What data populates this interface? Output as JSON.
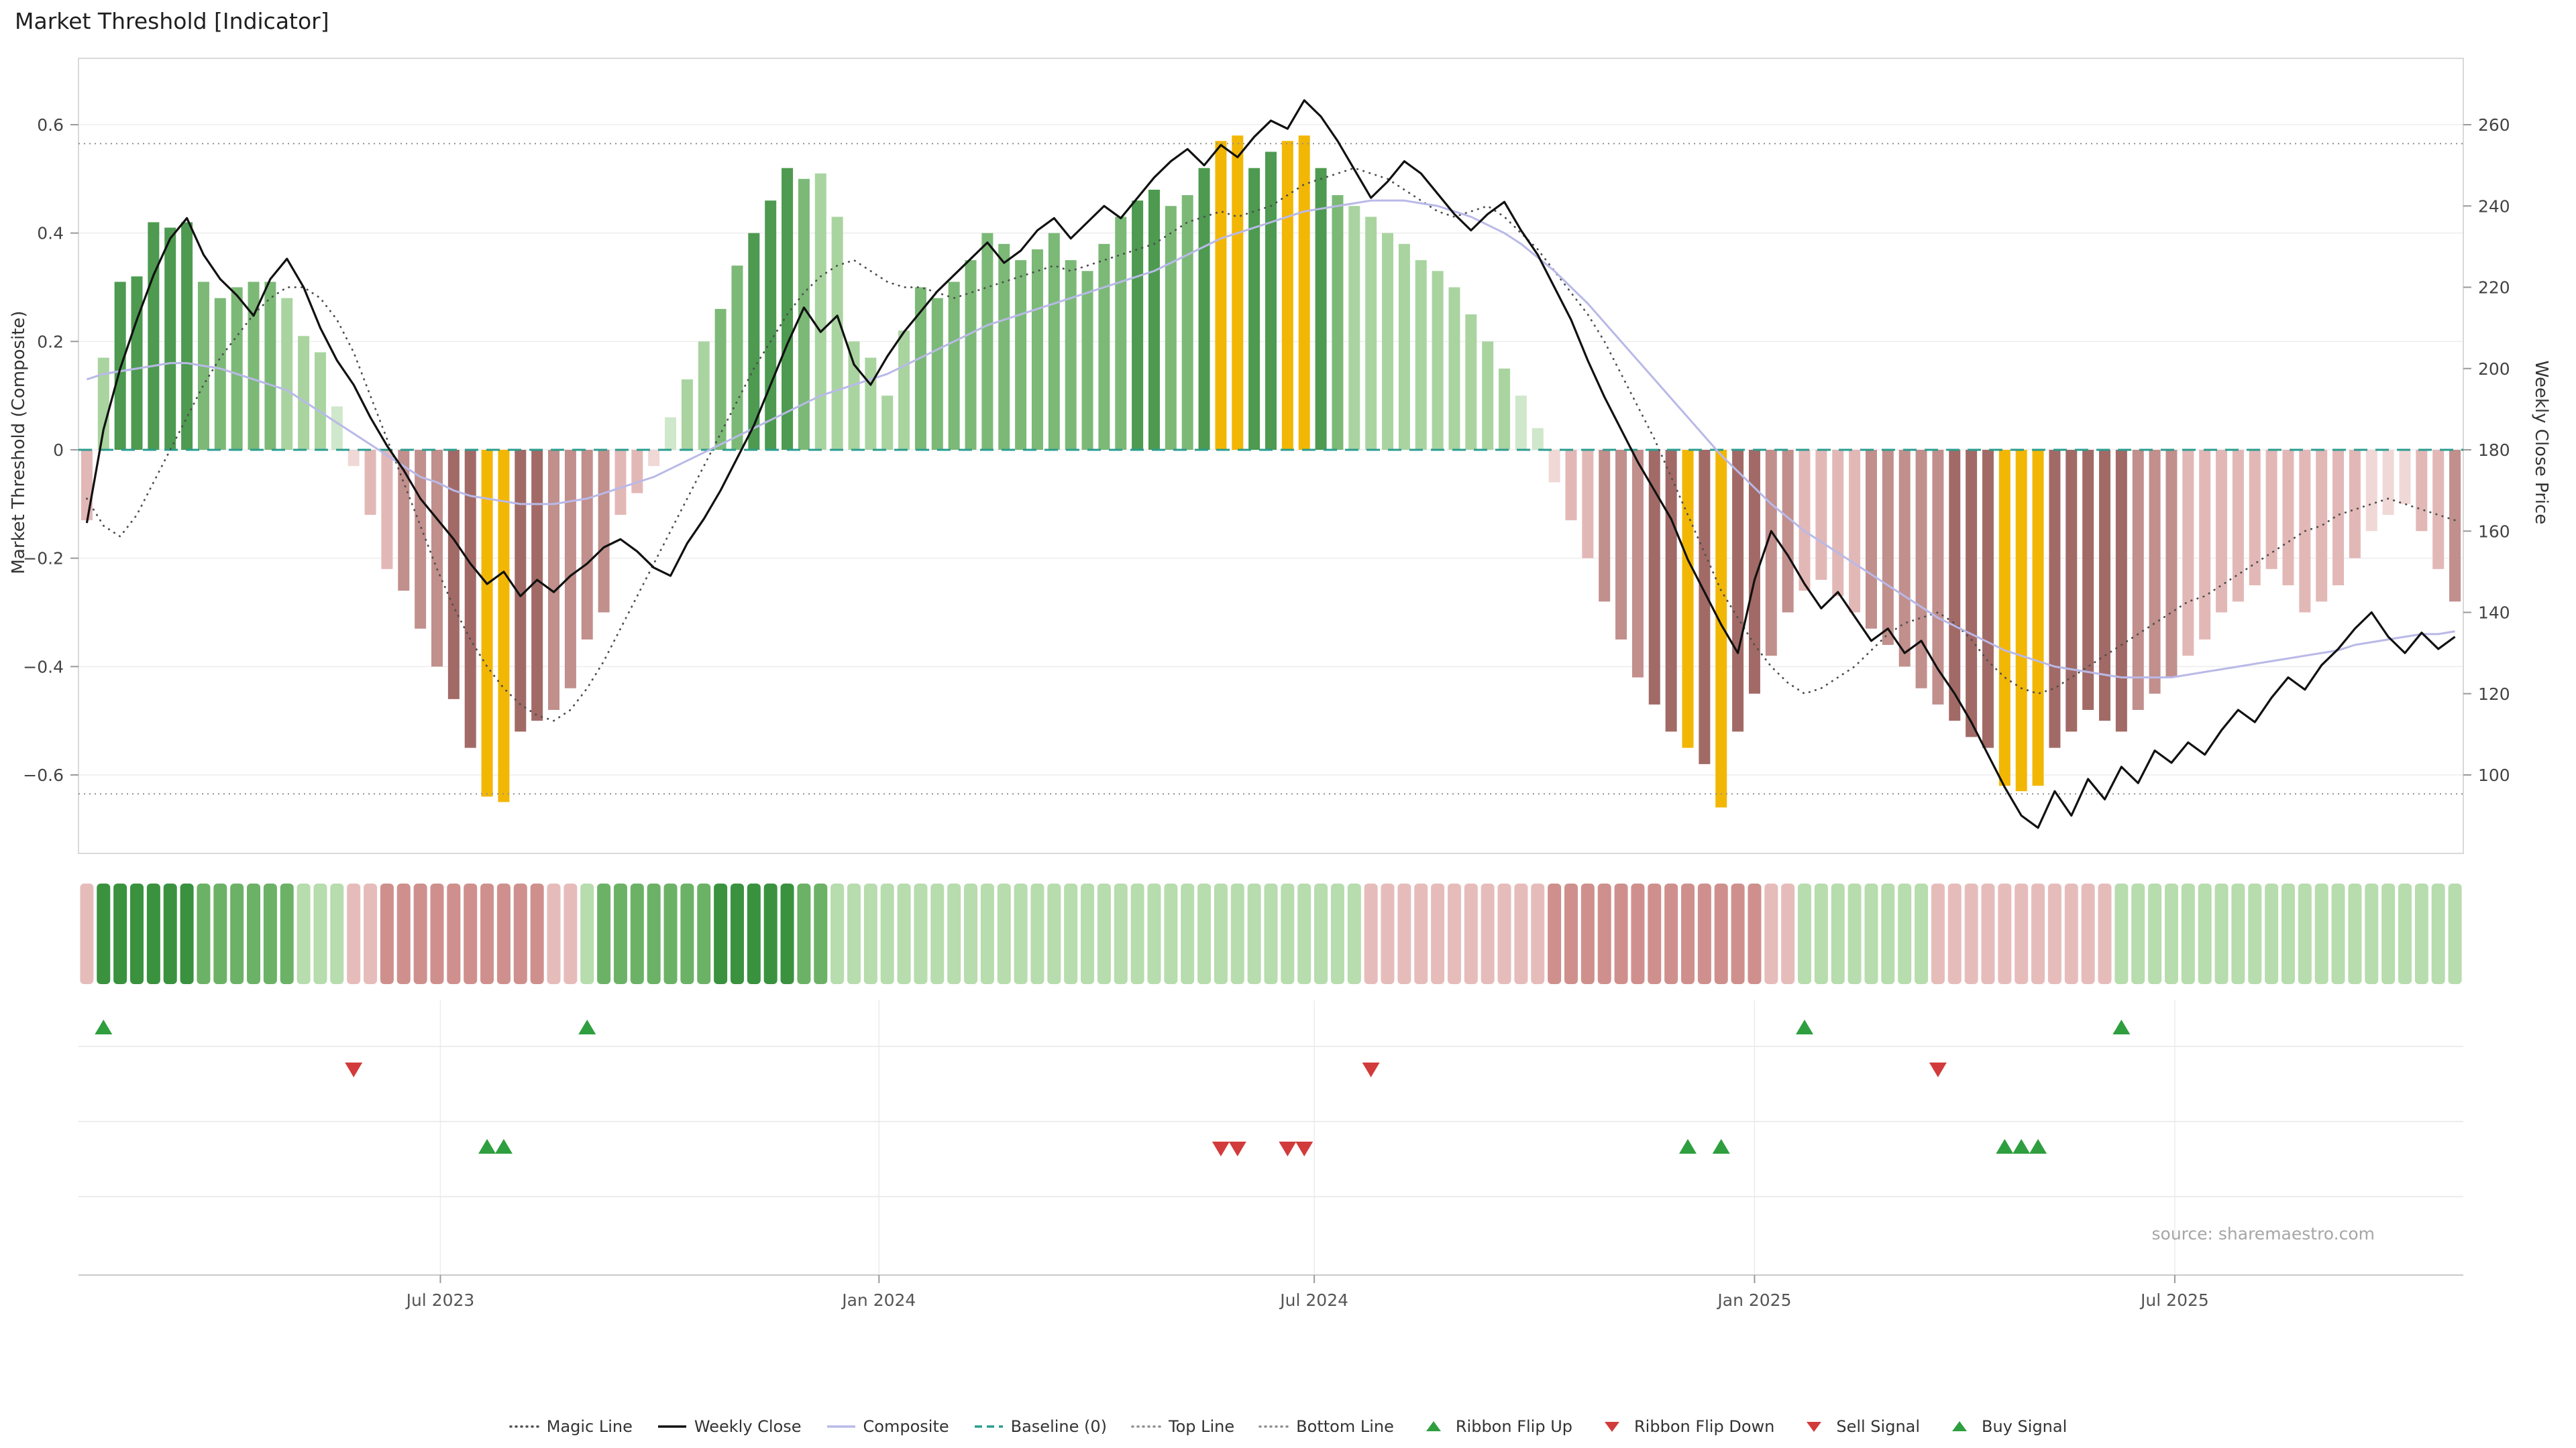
{
  "title": "Market Threshold [Indicator]",
  "source": "source: sharemaestro.com",
  "colors": {
    "bars": {
      "g3": "#4d9a50",
      "g2": "#7cb977",
      "g1": "#a9d4a0",
      "g0": "#cfe7ca",
      "r3": "#a26a66",
      "r2": "#c18f8c",
      "r1": "#e2b8b6",
      "r0": "#f0d8d6",
      "gold": "#f2b705"
    },
    "ribbon": {
      "3": "#3a923f",
      "2": "#6cb266",
      "1": "#b7dcad",
      "-1": "#e6bcba",
      "-2": "#cf908d",
      "-3": "#b96f6a"
    },
    "lines": {
      "weekly_close": "#111111",
      "composite": "#b9b9e8",
      "magic": "#4f4f4f",
      "baseline": "#2a9d8f",
      "threshold": "#8f8f8f"
    },
    "grid": "#ededed",
    "spine": "#d9d9d9",
    "tick_text": "#444444",
    "signal_up": "#2f9e3f",
    "signal_down": "#d23b3b"
  },
  "legend": [
    {
      "label": "Magic Line",
      "swatch": "dotted-line",
      "color": "#4f4f4f"
    },
    {
      "label": "Weekly Close",
      "swatch": "solid-line",
      "color": "#111111"
    },
    {
      "label": "Composite",
      "swatch": "solid-line",
      "color": "#b9b9e8"
    },
    {
      "label": "Baseline (0)",
      "swatch": "dashed-line",
      "color": "#2a9d8f"
    },
    {
      "label": "Top Line",
      "swatch": "dotted-line",
      "color": "#8f8f8f"
    },
    {
      "label": "Bottom Line",
      "swatch": "dotted-line",
      "color": "#8f8f8f"
    },
    {
      "label": "Ribbon Flip Up",
      "swatch": "triangle-up",
      "color": "#2f9e3f"
    },
    {
      "label": "Ribbon Flip Down",
      "swatch": "triangle-down",
      "color": "#d23b3b"
    },
    {
      "label": "Sell Signal",
      "swatch": "triangle-down",
      "color": "#d23b3b"
    },
    {
      "label": "Buy Signal",
      "swatch": "triangle-up",
      "color": "#2f9e3f"
    }
  ],
  "chart_data": {
    "type": "bar",
    "title": "Market Threshold [Indicator]",
    "x_unit": "week",
    "n_weeks": 143,
    "ylabel_left": "Market Threshold (Composite)",
    "ylabel_right": "Weekly Close Price",
    "ylim_left": [
      -0.74,
      0.72
    ],
    "yticks_left_values": [
      0.6,
      0.4,
      0.2,
      0,
      -0.2,
      -0.4,
      -0.6
    ],
    "yticks_left_labels": [
      "0.6",
      "0.4",
      "0.2",
      "0",
      "−0.2",
      "−0.4",
      "−0.6"
    ],
    "yticks_right_values": [
      260,
      240,
      220,
      200,
      180,
      160,
      140,
      120,
      100
    ],
    "yticks_right_labels": [
      "260",
      "240",
      "220",
      "200",
      "180",
      "160",
      "140",
      "120",
      "100"
    ],
    "right_axis_mapping": "price = 180 + composite * 133.33",
    "x_tick_labels": [
      "Jul 2023",
      "Jan 2024",
      "Jul 2024",
      "Jan 2025",
      "Jul 2025"
    ],
    "x_tick_weeks": [
      21.2,
      47.5,
      73.6,
      100.0,
      125.2
    ],
    "top_line": 0.565,
    "bottom_line": -0.635,
    "baseline": 0,
    "legend_position": "bottom",
    "series": {
      "composite_bars": [
        -0.13,
        0.17,
        0.31,
        0.32,
        0.42,
        0.41,
        0.42,
        0.31,
        0.28,
        0.3,
        0.31,
        0.31,
        0.28,
        0.21,
        0.18,
        0.08,
        -0.03,
        -0.12,
        -0.22,
        -0.26,
        -0.33,
        -0.4,
        -0.46,
        -0.55,
        -0.64,
        -0.65,
        -0.52,
        -0.5,
        -0.48,
        -0.44,
        -0.35,
        -0.3,
        -0.12,
        -0.08,
        -0.03,
        0.06,
        0.13,
        0.2,
        0.26,
        0.34,
        0.4,
        0.46,
        0.52,
        0.5,
        0.51,
        0.43,
        0.2,
        0.17,
        0.1,
        0.22,
        0.3,
        0.28,
        0.31,
        0.35,
        0.4,
        0.38,
        0.35,
        0.37,
        0.4,
        0.35,
        0.33,
        0.38,
        0.43,
        0.46,
        0.48,
        0.45,
        0.47,
        0.52,
        0.57,
        0.58,
        0.52,
        0.55,
        0.57,
        0.58,
        0.52,
        0.47,
        0.45,
        0.43,
        0.4,
        0.38,
        0.35,
        0.33,
        0.3,
        0.25,
        0.2,
        0.15,
        0.1,
        0.04,
        -0.06,
        -0.13,
        -0.2,
        -0.28,
        -0.35,
        -0.42,
        -0.47,
        -0.52,
        -0.55,
        -0.58,
        -0.66,
        -0.52,
        -0.45,
        -0.38,
        -0.3,
        -0.26,
        -0.24,
        -0.27,
        -0.3,
        -0.33,
        -0.36,
        -0.4,
        -0.44,
        -0.47,
        -0.5,
        -0.53,
        -0.55,
        -0.62,
        -0.63,
        -0.62,
        -0.55,
        -0.52,
        -0.48,
        -0.5,
        -0.52,
        -0.48,
        -0.45,
        -0.42,
        -0.38,
        -0.35,
        -0.3,
        -0.28,
        -0.25,
        -0.22,
        -0.25,
        -0.3,
        -0.28,
        -0.25,
        -0.2,
        -0.15,
        -0.12,
        -0.1,
        -0.15,
        -0.22,
        -0.28
      ],
      "weekly_close_price": [
        162,
        185,
        200,
        212,
        223,
        232,
        237,
        228,
        222,
        218,
        213,
        222,
        227,
        220,
        210,
        202,
        196,
        188,
        181,
        175,
        168,
        163,
        158,
        152,
        147,
        150,
        144,
        148,
        145,
        149,
        152,
        156,
        158,
        155,
        151,
        149,
        157,
        163,
        170,
        178,
        186,
        196,
        206,
        215,
        209,
        213,
        201,
        196,
        203,
        209,
        214,
        219,
        223,
        227,
        231,
        226,
        229,
        234,
        237,
        232,
        236,
        240,
        237,
        242,
        247,
        251,
        254,
        250,
        255,
        252,
        257,
        261,
        259,
        266,
        262,
        256,
        249,
        242,
        246,
        251,
        248,
        243,
        238,
        234,
        238,
        241,
        234,
        228,
        220,
        212,
        202,
        193,
        185,
        177,
        170,
        163,
        153,
        145,
        137,
        130,
        148,
        160,
        154,
        147,
        141,
        145,
        139,
        133,
        136,
        130,
        133,
        126,
        120,
        113,
        105,
        97,
        90,
        87,
        96,
        90,
        99,
        94,
        102,
        98,
        106,
        103,
        108,
        105,
        111,
        116,
        113,
        119,
        124,
        121,
        127,
        131,
        136,
        140,
        134,
        130,
        135,
        131,
        134
      ],
      "composite_line": [
        0.13,
        0.14,
        0.145,
        0.15,
        0.155,
        0.16,
        0.16,
        0.155,
        0.15,
        0.14,
        0.13,
        0.12,
        0.11,
        0.09,
        0.07,
        0.05,
        0.03,
        0.01,
        -0.01,
        -0.03,
        -0.05,
        -0.06,
        -0.075,
        -0.085,
        -0.09,
        -0.095,
        -0.1,
        -0.1,
        -0.1,
        -0.095,
        -0.09,
        -0.08,
        -0.07,
        -0.06,
        -0.05,
        -0.035,
        -0.02,
        -0.005,
        0.01,
        0.025,
        0.04,
        0.055,
        0.07,
        0.085,
        0.1,
        0.11,
        0.12,
        0.13,
        0.14,
        0.155,
        0.17,
        0.185,
        0.2,
        0.215,
        0.23,
        0.24,
        0.25,
        0.26,
        0.27,
        0.28,
        0.29,
        0.3,
        0.31,
        0.32,
        0.33,
        0.345,
        0.36,
        0.375,
        0.39,
        0.4,
        0.41,
        0.42,
        0.43,
        0.44,
        0.445,
        0.45,
        0.455,
        0.46,
        0.46,
        0.46,
        0.455,
        0.45,
        0.44,
        0.43,
        0.415,
        0.4,
        0.38,
        0.355,
        0.33,
        0.3,
        0.27,
        0.235,
        0.2,
        0.165,
        0.13,
        0.095,
        0.06,
        0.025,
        -0.01,
        -0.04,
        -0.07,
        -0.1,
        -0.125,
        -0.15,
        -0.17,
        -0.19,
        -0.21,
        -0.23,
        -0.25,
        -0.27,
        -0.29,
        -0.31,
        -0.325,
        -0.34,
        -0.355,
        -0.37,
        -0.38,
        -0.39,
        -0.4,
        -0.405,
        -0.41,
        -0.415,
        -0.42,
        -0.42,
        -0.42,
        -0.42,
        -0.415,
        -0.41,
        -0.405,
        -0.4,
        -0.395,
        -0.39,
        -0.385,
        -0.38,
        -0.375,
        -0.37,
        -0.36,
        -0.355,
        -0.35,
        -0.345,
        -0.34,
        -0.34,
        -0.335
      ],
      "magic_line": [
        -0.09,
        -0.14,
        -0.16,
        -0.12,
        -0.06,
        0.0,
        0.06,
        0.12,
        0.17,
        0.21,
        0.25,
        0.28,
        0.3,
        0.3,
        0.28,
        0.24,
        0.18,
        0.1,
        0.02,
        -0.06,
        -0.14,
        -0.22,
        -0.29,
        -0.35,
        -0.4,
        -0.44,
        -0.47,
        -0.49,
        -0.5,
        -0.48,
        -0.44,
        -0.39,
        -0.33,
        -0.27,
        -0.21,
        -0.15,
        -0.09,
        -0.03,
        0.03,
        0.09,
        0.15,
        0.2,
        0.25,
        0.29,
        0.32,
        0.34,
        0.35,
        0.33,
        0.31,
        0.3,
        0.3,
        0.29,
        0.28,
        0.29,
        0.3,
        0.31,
        0.32,
        0.33,
        0.34,
        0.33,
        0.34,
        0.35,
        0.36,
        0.37,
        0.38,
        0.4,
        0.42,
        0.43,
        0.44,
        0.43,
        0.44,
        0.45,
        0.47,
        0.49,
        0.5,
        0.51,
        0.52,
        0.51,
        0.5,
        0.48,
        0.46,
        0.44,
        0.43,
        0.44,
        0.45,
        0.43,
        0.4,
        0.37,
        0.33,
        0.29,
        0.25,
        0.2,
        0.14,
        0.08,
        0.02,
        -0.05,
        -0.12,
        -0.19,
        -0.26,
        -0.31,
        -0.36,
        -0.4,
        -0.43,
        -0.45,
        -0.44,
        -0.42,
        -0.4,
        -0.37,
        -0.34,
        -0.32,
        -0.31,
        -0.3,
        -0.32,
        -0.35,
        -0.39,
        -0.42,
        -0.44,
        -0.45,
        -0.44,
        -0.42,
        -0.4,
        -0.38,
        -0.36,
        -0.34,
        -0.32,
        -0.3,
        -0.28,
        -0.27,
        -0.25,
        -0.23,
        -0.21,
        -0.19,
        -0.17,
        -0.15,
        -0.14,
        -0.12,
        -0.11,
        -0.1,
        -0.09,
        -0.1,
        -0.11,
        -0.12,
        -0.13
      ]
    },
    "bar_shades": [
      "r1",
      "g1",
      "g3",
      "g3",
      "g3",
      "g3",
      "g3",
      "g2",
      "g2",
      "g2",
      "g2",
      "g2",
      "g1",
      "g1",
      "g1",
      "g0",
      "r0",
      "r1",
      "r1",
      "r2",
      "r2",
      "r2",
      "r3",
      "r3",
      "gold",
      "gold",
      "r3",
      "r3",
      "r2",
      "r2",
      "r2",
      "r2",
      "r1",
      "r1",
      "r0",
      "g0",
      "g1",
      "g1",
      "g2",
      "g2",
      "g3",
      "g3",
      "g3",
      "g2",
      "g1",
      "g1",
      "g1",
      "g1",
      "g1",
      "g1",
      "g2",
      "g2",
      "g2",
      "g2",
      "g2",
      "g2",
      "g2",
      "g2",
      "g2",
      "g2",
      "g2",
      "g2",
      "g2",
      "g3",
      "g3",
      "g2",
      "g2",
      "g3",
      "gold",
      "gold",
      "g3",
      "g3",
      "gold",
      "gold",
      "g3",
      "g2",
      "g1",
      "g1",
      "g1",
      "g1",
      "g1",
      "g1",
      "g1",
      "g1",
      "g1",
      "g1",
      "g0",
      "g0",
      "r0",
      "r1",
      "r1",
      "r2",
      "r2",
      "r2",
      "r3",
      "r3",
      "gold",
      "r3",
      "gold",
      "r3",
      "r3",
      "r2",
      "r2",
      "r1",
      "r1",
      "r1",
      "r1",
      "r2",
      "r2",
      "r2",
      "r2",
      "r2",
      "r3",
      "r3",
      "r3",
      "gold",
      "gold",
      "gold",
      "r3",
      "r3",
      "r3",
      "r3",
      "r3",
      "r2",
      "r2",
      "r2",
      "r1",
      "r1",
      "r1",
      "r1",
      "r1",
      "r1",
      "r1",
      "r1",
      "r1",
      "r1",
      "r1",
      "r0",
      "r0",
      "r0",
      "r1",
      "r1",
      "r2"
    ],
    "ribbon": [
      -1,
      3,
      3,
      3,
      3,
      3,
      3,
      2,
      2,
      2,
      2,
      2,
      2,
      1,
      1,
      1,
      -1,
      -1,
      -2,
      -2,
      -2,
      -2,
      -2,
      -2,
      -2,
      -2,
      -2,
      -2,
      -1,
      -1,
      1,
      2,
      2,
      2,
      2,
      2,
      2,
      2,
      3,
      3,
      3,
      3,
      3,
      2,
      2,
      1,
      1,
      1,
      1,
      1,
      1,
      1,
      1,
      1,
      1,
      1,
      1,
      1,
      1,
      1,
      1,
      1,
      1,
      1,
      1,
      1,
      1,
      1,
      1,
      1,
      1,
      1,
      1,
      1,
      1,
      1,
      1,
      -1,
      -1,
      -1,
      -1,
      -1,
      -1,
      -1,
      -1,
      -1,
      -1,
      -1,
      -2,
      -2,
      -2,
      -2,
      -2,
      -2,
      -2,
      -2,
      -2,
      -2,
      -2,
      -2,
      -2,
      -1,
      -1,
      1,
      1,
      1,
      1,
      1,
      1,
      1,
      1,
      -1,
      -1,
      -1,
      -1,
      -1,
      -1,
      -1,
      -1,
      -1,
      -1,
      -1,
      1,
      1,
      1,
      1,
      1,
      1,
      1,
      1,
      1,
      1,
      1,
      1,
      1,
      1,
      1,
      1,
      1,
      1,
      1,
      1,
      1
    ],
    "signals": {
      "ribbon_flip_up_weeks": [
        1,
        30,
        103,
        122
      ],
      "ribbon_flip_down_weeks": [
        16,
        77,
        111
      ],
      "sell_signal_weeks": [
        68,
        69,
        72,
        73
      ],
      "buy_signal_weeks": [
        24,
        25,
        96,
        98,
        115,
        116,
        117
      ]
    }
  }
}
